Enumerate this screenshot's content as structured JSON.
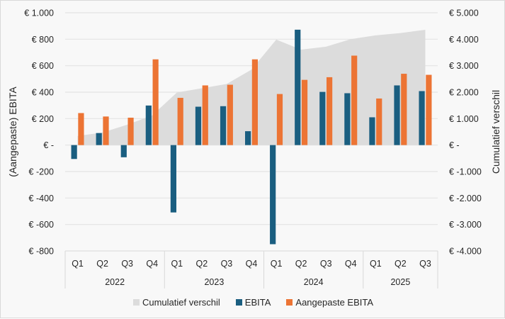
{
  "chart_data": {
    "type": "bar",
    "title": "",
    "xlabel": "",
    "ylabel": "(Aangepaste) EBITA",
    "y2label": "Cumulatief verschil",
    "ylim": [
      -800,
      1000
    ],
    "y2lim": [
      -4000,
      5000
    ],
    "yticks": [
      {
        "value": 1000,
        "label": "€ 1.000"
      },
      {
        "value": 800,
        "label": "€ 800"
      },
      {
        "value": 600,
        "label": "€ 600"
      },
      {
        "value": 400,
        "label": "€ 400"
      },
      {
        "value": 200,
        "label": "€ 200"
      },
      {
        "value": 0,
        "label": "€ -"
      },
      {
        "value": -200,
        "label": "€ -200"
      },
      {
        "value": -400,
        "label": "€ -400"
      },
      {
        "value": -600,
        "label": "€ -600"
      },
      {
        "value": -800,
        "label": "€ -800"
      }
    ],
    "y2ticks": [
      {
        "value": 5000,
        "label": "€ 5.000"
      },
      {
        "value": 4000,
        "label": "€ 4.000"
      },
      {
        "value": 3000,
        "label": "€ 3.000"
      },
      {
        "value": 2000,
        "label": "€ 2.000"
      },
      {
        "value": 1000,
        "label": "€ 1.000"
      },
      {
        "value": 0,
        "label": "€ -"
      },
      {
        "value": -1000,
        "label": "€ -1.000"
      },
      {
        "value": -2000,
        "label": "€ -2.000"
      },
      {
        "value": -3000,
        "label": "€ -3.000"
      },
      {
        "value": -4000,
        "label": "€ -4.000"
      }
    ],
    "grid": true,
    "legend_position": "bottom",
    "groups": [
      {
        "label": "2022",
        "quarters": [
          "Q1",
          "Q2",
          "Q3",
          "Q4"
        ]
      },
      {
        "label": "2023",
        "quarters": [
          "Q1",
          "Q2",
          "Q3",
          "Q4"
        ]
      },
      {
        "label": "2024",
        "quarters": [
          "Q1",
          "Q2",
          "Q3",
          "Q4"
        ]
      },
      {
        "label": "2025",
        "quarters": [
          "Q1",
          "Q2",
          "Q3"
        ]
      }
    ],
    "categories": [
      "2022 Q1",
      "2022 Q2",
      "2022 Q3",
      "2022 Q4",
      "2023 Q1",
      "2023 Q2",
      "2023 Q3",
      "2023 Q4",
      "2024 Q1",
      "2024 Q2",
      "2024 Q3",
      "2024 Q4",
      "2025 Q1",
      "2025 Q2",
      "2025 Q3"
    ],
    "series": [
      {
        "name": "Cumulatief verschil",
        "type": "area",
        "axis": "right",
        "color": "#dcdcdc",
        "values": [
          347,
          472,
          771,
          1120,
          1986,
          2147,
          2309,
          2852,
          3987,
          3608,
          3719,
          4003,
          4145,
          4233,
          4356
        ]
      },
      {
        "name": "EBITA",
        "type": "bar",
        "axis": "left",
        "color": "#1a5e80",
        "values": [
          -105,
          91,
          -92,
          299,
          -509,
          290,
          294,
          105,
          -749,
          872,
          402,
          392,
          210,
          451,
          408
        ]
      },
      {
        "name": "Aangepaste EBITA",
        "type": "bar",
        "axis": "left",
        "color": "#ec7434",
        "values": [
          242,
          216,
          207,
          648,
          357,
          451,
          456,
          648,
          386,
          493,
          513,
          676,
          352,
          539,
          531
        ]
      }
    ]
  },
  "legend": [
    {
      "label": "Cumulatief verschil",
      "color": "#dcdcdc"
    },
    {
      "label": "EBITA",
      "color": "#1a5e80"
    },
    {
      "label": "Aangepaste EBITA",
      "color": "#ec7434"
    }
  ]
}
